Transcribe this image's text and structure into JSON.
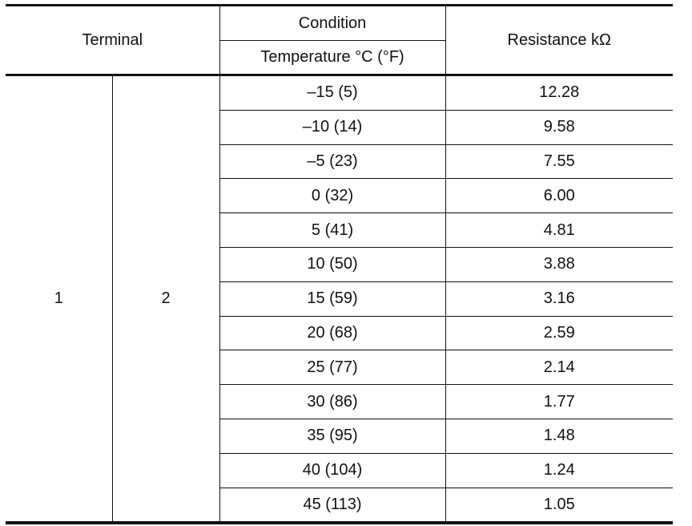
{
  "header": {
    "terminal": "Terminal",
    "condition": "Condition",
    "temperature": "Temperature °C (°F)",
    "resistance": "Resistance kΩ"
  },
  "terminals": {
    "a": "1",
    "b": "2"
  },
  "rows": [
    {
      "temp": "–15 (5)",
      "resistance": "12.28"
    },
    {
      "temp": "–10 (14)",
      "resistance": "9.58"
    },
    {
      "temp": "–5 (23)",
      "resistance": "7.55"
    },
    {
      "temp": "0 (32)",
      "resistance": "6.00"
    },
    {
      "temp": "5 (41)",
      "resistance": "4.81"
    },
    {
      "temp": "10 (50)",
      "resistance": "3.88"
    },
    {
      "temp": "15 (59)",
      "resistance": "3.16"
    },
    {
      "temp": "20 (68)",
      "resistance": "2.59"
    },
    {
      "temp": "25 (77)",
      "resistance": "2.14"
    },
    {
      "temp": "30 (86)",
      "resistance": "1.77"
    },
    {
      "temp": "35 (95)",
      "resistance": "1.48"
    },
    {
      "temp": "40 (104)",
      "resistance": "1.24"
    },
    {
      "temp": "45 (113)",
      "resistance": "1.05"
    }
  ]
}
